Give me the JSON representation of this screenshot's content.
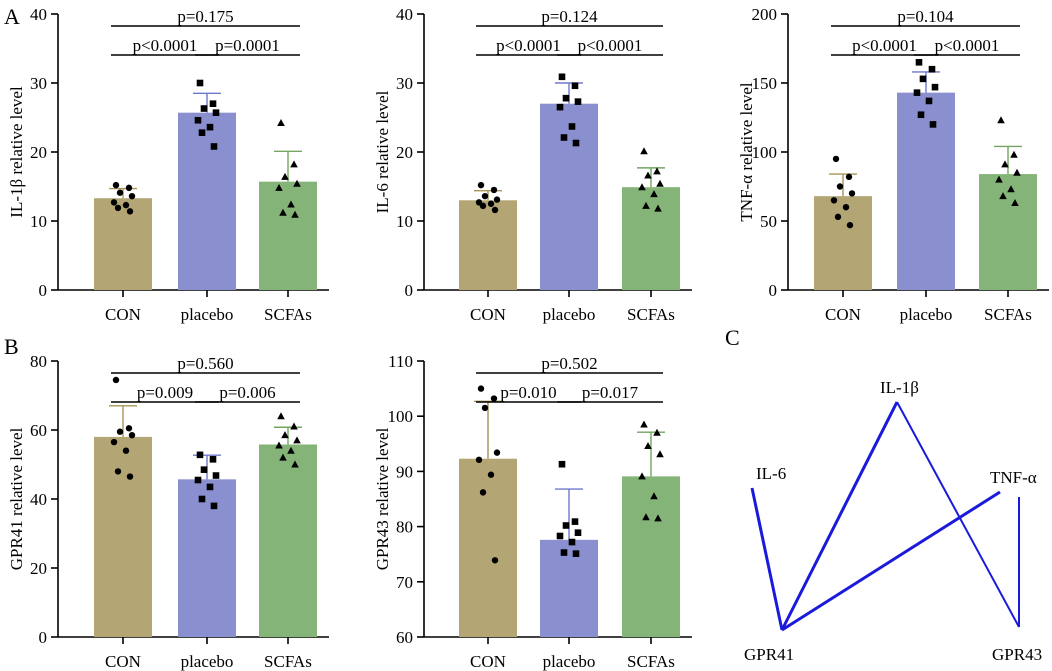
{
  "panel_labels": {
    "A": "A",
    "B": "B",
    "C": "C"
  },
  "colors": {
    "con": "#B3A574",
    "placebo": "#8A8FD0",
    "scfas": "#84B477",
    "con_err": "#A89558",
    "placebo_err": "#6E78CC",
    "scfas_err": "#72A65E",
    "network_line": "#1A1ADB"
  },
  "chart_data": [
    {
      "type": "bar",
      "panel": "A1",
      "categories": [
        "CON",
        "placebo",
        "SCFAs"
      ],
      "ylabel": "IL-1β relative level",
      "ylim": [
        0,
        40
      ],
      "yticks": [
        0,
        10,
        20,
        30,
        40
      ],
      "values": [
        13.3,
        25.7,
        15.7
      ],
      "errors": [
        1.4,
        2.8,
        4.4
      ],
      "points": [
        [
          15.2,
          14.8,
          14.1,
          13.6,
          12.7,
          12.3,
          11.9,
          11.4
        ],
        [
          30.0,
          27.0,
          26.3,
          25.7,
          24.6,
          23.6,
          22.8,
          20.8
        ],
        [
          24.2,
          18.2,
          16.4,
          15.4,
          14.8,
          12.4,
          11.2,
          10.9
        ]
      ],
      "comparisons": [
        {
          "text": "p<0.0001",
          "from": 0,
          "to": 1,
          "level": 1
        },
        {
          "text": "p=0.0001",
          "from": 1,
          "to": 2,
          "level": 1
        },
        {
          "text": "p=0.175",
          "from": 0,
          "to": 2,
          "level": 2
        }
      ]
    },
    {
      "type": "bar",
      "panel": "A2",
      "categories": [
        "CON",
        "placebo",
        "SCFAs"
      ],
      "ylabel": "IL-6 relative level",
      "ylim": [
        0,
        40
      ],
      "yticks": [
        0,
        10,
        20,
        30,
        40
      ],
      "values": [
        13.0,
        27.0,
        14.9
      ],
      "errors": [
        1.4,
        3.0,
        2.8
      ],
      "points": [
        [
          15.2,
          14.5,
          13.6,
          13.1,
          12.7,
          12.5,
          12.2,
          11.6
        ],
        [
          30.9,
          29.6,
          27.8,
          27.3,
          26.5,
          23.7,
          22.1,
          21.3
        ],
        [
          20.1,
          17.2,
          16.6,
          15.4,
          14.9,
          13.9,
          12.2,
          11.8
        ]
      ],
      "comparisons": [
        {
          "text": "p<0.0001",
          "from": 0,
          "to": 1,
          "level": 1
        },
        {
          "text": "p<0.0001",
          "from": 1,
          "to": 2,
          "level": 1
        },
        {
          "text": "p=0.124",
          "from": 0,
          "to": 2,
          "level": 2
        }
      ]
    },
    {
      "type": "bar",
      "panel": "A3",
      "categories": [
        "CON",
        "placebo",
        "SCFAs"
      ],
      "ylabel": "TNF-α relative level",
      "ylim": [
        0,
        200
      ],
      "yticks": [
        0,
        50,
        100,
        150,
        200
      ],
      "values": [
        68,
        143,
        84
      ],
      "errors": [
        16,
        15,
        20
      ],
      "points": [
        [
          95,
          82,
          75,
          70,
          65,
          60,
          53,
          47
        ],
        [
          165,
          160,
          153,
          147,
          143,
          137,
          127,
          120
        ],
        [
          123,
          98,
          91,
          85,
          80,
          73,
          68,
          63
        ]
      ],
      "comparisons": [
        {
          "text": "p<0.0001",
          "from": 0,
          "to": 1,
          "level": 1
        },
        {
          "text": "p<0.0001",
          "from": 1,
          "to": 2,
          "level": 1
        },
        {
          "text": "p=0.104",
          "from": 0,
          "to": 2,
          "level": 2
        }
      ]
    },
    {
      "type": "bar",
      "panel": "B1",
      "categories": [
        "CON",
        "placebo",
        "SCFAs"
      ],
      "ylabel": "GPR41 relative level",
      "ylim": [
        0,
        80
      ],
      "yticks": [
        0,
        20,
        40,
        60,
        80
      ],
      "values": [
        58,
        45.7,
        55.8
      ],
      "errors": [
        9,
        7,
        5
      ],
      "points": [
        [
          74.5,
          60.5,
          59.5,
          58.5,
          56.5,
          54,
          48,
          46.5
        ],
        [
          52.8,
          51.5,
          48.5,
          46.8,
          45.5,
          43.5,
          40,
          38
        ],
        [
          64,
          61,
          58.5,
          57,
          55.5,
          54,
          52,
          50
        ]
      ],
      "comparisons": [
        {
          "text": "p=0.009",
          "from": 0,
          "to": 1,
          "level": 1
        },
        {
          "text": "p=0.006",
          "from": 1,
          "to": 2,
          "level": 1
        },
        {
          "text": "p=0.560",
          "from": 0,
          "to": 2,
          "level": 2
        }
      ]
    },
    {
      "type": "bar",
      "panel": "B2",
      "categories": [
        "CON",
        "placebo",
        "SCFAs"
      ],
      "ylabel": "GPR43 relative level",
      "ylim": [
        60,
        110
      ],
      "yticks": [
        60,
        70,
        80,
        90,
        100,
        110
      ],
      "values": [
        92.3,
        77.6,
        89.1
      ],
      "errors": [
        10.4,
        9.2,
        8
      ],
      "points": [
        [
          105,
          103.2,
          101.5,
          93.4,
          92.1,
          89.4,
          86.2,
          73.9
        ],
        [
          91.3,
          80.9,
          80.2,
          78.9,
          78.3,
          77.2,
          75.3,
          75.1
        ],
        [
          98.5,
          97,
          94.6,
          93.1,
          89.1,
          85.5,
          81.7,
          81.5
        ]
      ],
      "comparisons": [
        {
          "text": "p=0.010",
          "from": 0,
          "to": 1,
          "level": 1
        },
        {
          "text": "p=0.017",
          "from": 1,
          "to": 2,
          "level": 1
        },
        {
          "text": "p=0.502",
          "from": 0,
          "to": 2,
          "level": 2
        }
      ]
    }
  ],
  "network": {
    "nodes": [
      "IL-6",
      "IL-1β",
      "TNF-α",
      "GPR41",
      "GPR43"
    ],
    "edges": [
      [
        "GPR41",
        "IL-6"
      ],
      [
        "GPR41",
        "IL-1β"
      ],
      [
        "GPR41",
        "TNF-α"
      ],
      [
        "GPR43",
        "IL-1β"
      ],
      [
        "GPR43",
        "TNF-α"
      ]
    ]
  }
}
